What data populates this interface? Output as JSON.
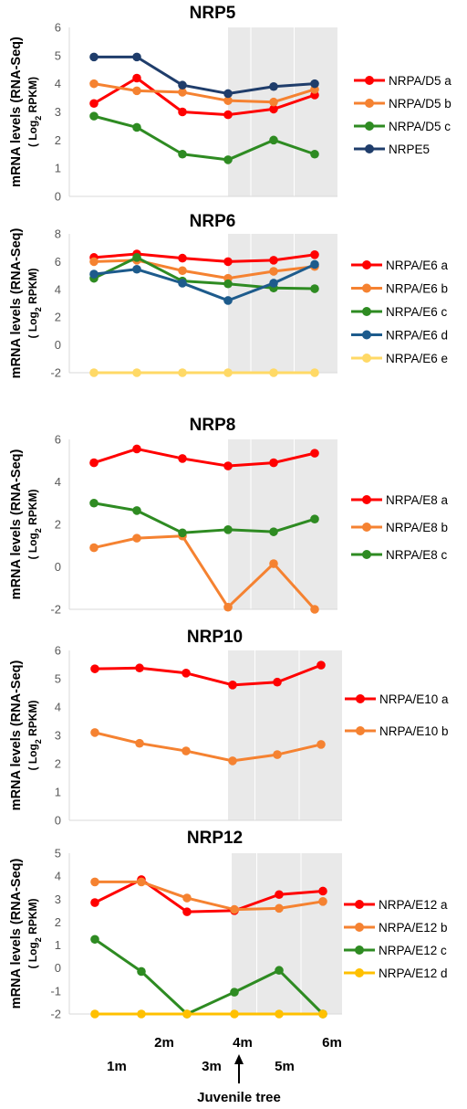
{
  "chart_data": [
    {
      "type": "line",
      "title": "NRP5",
      "ylabel": "mRNA levels (RNA-Seq)",
      "ylabel_sub": "( Log2 RPKM)",
      "ylim": [
        0,
        6
      ],
      "yticks": [
        0,
        1,
        2,
        3,
        4,
        5,
        6
      ],
      "juvenile_shade_from_index": 3,
      "series": [
        {
          "name": "NRPA/D5 a",
          "color": "#ff0000",
          "values": [
            3.3,
            4.2,
            3.0,
            2.9,
            3.1,
            3.6
          ]
        },
        {
          "name": "NRPA/D5 b",
          "color": "#f58231",
          "values": [
            4.0,
            3.75,
            3.7,
            3.4,
            3.35,
            3.8
          ]
        },
        {
          "name": "NRPA/D5 c",
          "color": "#2e8b22",
          "values": [
            2.85,
            2.45,
            1.5,
            1.3,
            2.0,
            1.5
          ]
        },
        {
          "name": "NRPE5",
          "color": "#1f3d6b",
          "values": [
            4.95,
            4.95,
            3.95,
            3.65,
            3.9,
            4.0
          ]
        }
      ]
    },
    {
      "type": "line",
      "title": "NRP6",
      "ylabel": "mRNA levels (RNA-Seq)",
      "ylabel_sub": "( Log2 RPKM)",
      "ylim": [
        -2,
        8
      ],
      "yticks": [
        -2,
        0,
        2,
        4,
        6,
        8
      ],
      "juvenile_shade_from_index": 3,
      "series": [
        {
          "name": "NRPA/E6 a",
          "color": "#ff0000",
          "values": [
            6.3,
            6.55,
            6.25,
            6.0,
            6.1,
            6.5
          ]
        },
        {
          "name": "NRPA/E6 b",
          "color": "#f58231",
          "values": [
            6.0,
            6.1,
            5.35,
            4.8,
            5.3,
            5.65
          ]
        },
        {
          "name": "NRPA/E6 c",
          "color": "#2e8b22",
          "values": [
            4.8,
            6.3,
            4.6,
            4.4,
            4.1,
            4.05
          ]
        },
        {
          "name": "NRPA/E6 d",
          "color": "#1d5b8c",
          "values": [
            5.1,
            5.45,
            4.45,
            3.2,
            4.45,
            5.8
          ]
        },
        {
          "name": "NRPA/E6 e",
          "color": "#ffd966",
          "values": [
            -2,
            -2,
            -2,
            -2,
            -2,
            -2
          ]
        }
      ]
    },
    {
      "type": "line",
      "title": "NRP8",
      "ylabel": "mRNA levels (RNA-Seq)",
      "ylabel_sub": "( Log2 RPKM)",
      "ylim": [
        -2,
        6
      ],
      "yticks": [
        -2,
        0,
        2,
        4,
        6
      ],
      "juvenile_shade_from_index": 3,
      "series": [
        {
          "name": "NRPA/E8 a",
          "color": "#ff0000",
          "values": [
            4.9,
            5.55,
            5.1,
            4.75,
            4.9,
            5.35
          ]
        },
        {
          "name": "NRPA/E8 b",
          "color": "#f58231",
          "values": [
            0.9,
            1.35,
            1.45,
            -1.9,
            0.15,
            -2.0
          ]
        },
        {
          "name": "NRPA/E8 c",
          "color": "#2e8b22",
          "values": [
            3.0,
            2.65,
            1.6,
            1.75,
            1.65,
            2.25
          ]
        }
      ]
    },
    {
      "type": "line",
      "title": "NRP10",
      "ylabel": "mRNA levels (RNA-Seq)",
      "ylabel_sub": "( Log2 RPKM)",
      "ylim": [
        0,
        6
      ],
      "yticks": [
        0,
        1,
        2,
        3,
        4,
        5,
        6
      ],
      "juvenile_shade_from_index": 3,
      "series": [
        {
          "name": "NRPA/E10 a",
          "color": "#ff0000",
          "values": [
            5.35,
            5.38,
            5.2,
            4.78,
            4.88,
            5.48
          ]
        },
        {
          "name": "NRPA/E10 b",
          "color": "#f58231",
          "values": [
            3.1,
            2.72,
            2.45,
            2.1,
            2.32,
            2.68
          ]
        }
      ]
    },
    {
      "type": "line",
      "title": "NRP12",
      "ylabel": "mRNA levels (RNA-Seq)",
      "ylabel_sub": "( Log2 RPKM)",
      "ylim": [
        -2,
        5
      ],
      "yticks": [
        -2,
        -1,
        0,
        1,
        2,
        3,
        4,
        5
      ],
      "juvenile_shade_from_index": 3,
      "series": [
        {
          "name": "NRPA/E12 a",
          "color": "#ff0000",
          "values": [
            2.85,
            3.85,
            2.45,
            2.5,
            3.2,
            3.35
          ]
        },
        {
          "name": "NRPA/E12 b",
          "color": "#f58231",
          "values": [
            3.75,
            3.75,
            3.05,
            2.55,
            2.6,
            2.9
          ]
        },
        {
          "name": "NRPA/E12 c",
          "color": "#2e8b22",
          "values": [
            1.25,
            -0.15,
            -2.0,
            -1.05,
            -0.1,
            -2.0
          ]
        },
        {
          "name": "NRPA/E12 d",
          "color": "#ffc000",
          "values": [
            -2,
            -2,
            -2,
            -2,
            -2,
            -2
          ]
        }
      ]
    }
  ],
  "x_axis": {
    "categories": [
      "1m",
      "2m",
      "3m",
      "4m",
      "5m",
      "6m"
    ],
    "annotation": "Juvenile tree",
    "annotation_category_index": 3
  }
}
